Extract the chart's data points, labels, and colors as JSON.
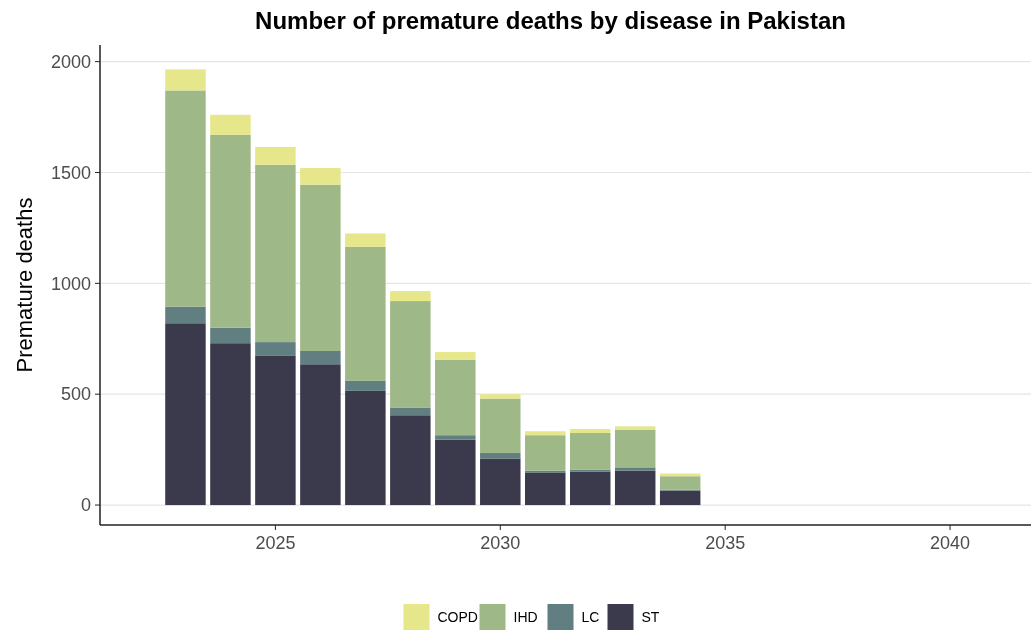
{
  "chart_data": {
    "type": "bar",
    "title": "Number of premature deaths by disease in Pakistan",
    "ylabel": "Premature deaths",
    "x": [
      2023,
      2024,
      2025,
      2026,
      2027,
      2028,
      2029,
      2030,
      2031,
      2032,
      2033,
      2034
    ],
    "stacked": true,
    "series": [
      {
        "name": "ST",
        "color": "#3a3a4c",
        "values": [
          820,
          730,
          675,
          635,
          515,
          405,
          295,
          210,
          145,
          150,
          155,
          65
        ]
      },
      {
        "name": "LC",
        "color": "#617e80",
        "values": [
          75,
          70,
          60,
          60,
          45,
          35,
          20,
          25,
          10,
          10,
          15,
          5
        ]
      },
      {
        "name": "IHD",
        "color": "#9fb887",
        "values": [
          975,
          870,
          800,
          750,
          605,
          480,
          340,
          245,
          160,
          165,
          170,
          60
        ]
      },
      {
        "name": "COPD",
        "color": "#e6e68a",
        "values": [
          95,
          90,
          80,
          75,
          60,
          45,
          35,
          20,
          18,
          18,
          15,
          12
        ]
      }
    ],
    "xlim": [
      2021.1,
      2041.8
    ],
    "xticks": [
      2025,
      2030,
      2035,
      2040
    ],
    "ylim": [
      -90,
      2075
    ],
    "yticks": [
      0,
      500,
      1000,
      1500,
      2000
    ],
    "grid": "y",
    "legend": "bottom"
  }
}
